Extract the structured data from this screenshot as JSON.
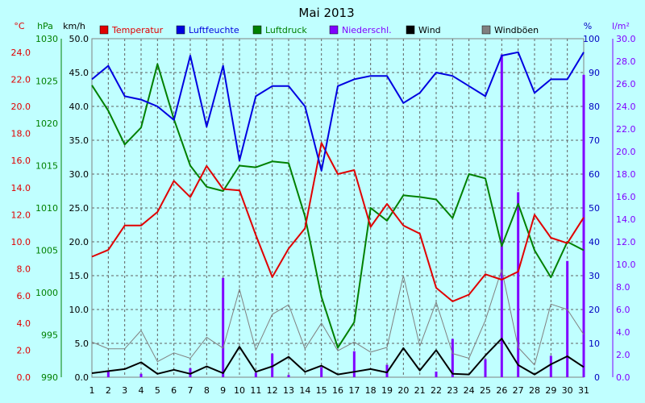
{
  "chart_data": {
    "type": "line",
    "title": "Mai 2013",
    "x": [
      1,
      2,
      3,
      4,
      5,
      6,
      7,
      8,
      9,
      10,
      11,
      12,
      13,
      14,
      15,
      16,
      17,
      18,
      19,
      20,
      21,
      22,
      23,
      24,
      25,
      26,
      27,
      28,
      29,
      30,
      31
    ],
    "axes": {
      "temperature": {
        "unit": "°C",
        "range": [
          0,
          25
        ],
        "ticks": [
          "0.0",
          "2.0",
          "4.0",
          "6.0",
          "8.0",
          "10.0",
          "12.0",
          "14.0",
          "16.0",
          "18.0",
          "20.0",
          "22.0",
          "24.0"
        ],
        "color": "#e00000"
      },
      "pressure": {
        "unit": "hPa",
        "range": [
          990,
          1030
        ],
        "ticks": [
          "990",
          "995",
          "1000",
          "1005",
          "1010",
          "1015",
          "1020",
          "1025",
          "1030"
        ],
        "color": "#008000"
      },
      "wind": {
        "unit": "km/h",
        "range": [
          0,
          50
        ],
        "ticks": [
          "0.0",
          "5.0",
          "10.0",
          "15.0",
          "20.0",
          "25.0",
          "30.0",
          "35.0",
          "40.0",
          "45.0",
          "50.0"
        ],
        "color": "#000000"
      },
      "humidity": {
        "unit": "%",
        "range": [
          0,
          100
        ],
        "ticks": [
          "0",
          "10",
          "20",
          "30",
          "40",
          "50",
          "60",
          "70",
          "80",
          "90",
          "100"
        ],
        "color": "#0000c0"
      },
      "precipitation": {
        "unit": "l/m²",
        "range": [
          0,
          30
        ],
        "ticks": [
          "0.0",
          "2.0",
          "4.0",
          "6.0",
          "8.0",
          "10.0",
          "12.0",
          "14.0",
          "16.0",
          "18.0",
          "20.0",
          "22.0",
          "24.0",
          "26.0",
          "28.0",
          "30.0"
        ],
        "color": "#8000ff"
      }
    },
    "series": [
      {
        "name": "Temperatur",
        "color": "#e00000",
        "axis": "temperature",
        "values": [
          8.9,
          9.4,
          11.2,
          11.2,
          12.2,
          14.5,
          13.3,
          15.6,
          13.9,
          13.8,
          10.5,
          7.4,
          9.5,
          11.0,
          17.3,
          15.0,
          15.3,
          11.1,
          12.8,
          11.2,
          10.6,
          6.6,
          5.6,
          6.1,
          7.6,
          7.2,
          7.8,
          12.0,
          10.3,
          9.9,
          11.8
        ]
      },
      {
        "name": "Luftfeuchte",
        "color": "#0000e0",
        "axis": "humidity",
        "values": [
          88,
          92,
          83,
          82,
          80,
          76,
          95,
          74,
          92,
          64,
          83,
          86,
          86,
          80,
          61,
          86,
          88,
          89,
          89,
          81,
          84,
          90,
          89,
          86,
          83,
          95,
          96,
          84,
          88,
          88,
          96
        ]
      },
      {
        "name": "Luftdruck",
        "color": "#008000",
        "axis": "pressure",
        "values": [
          1024.5,
          1021.5,
          1017.5,
          1019.5,
          1027,
          1020.5,
          1015,
          1012.5,
          1012,
          1015,
          1014.8,
          1015.5,
          1015.3,
          1009,
          999.5,
          993.5,
          996.5,
          1010,
          1008.5,
          1011.5,
          1011.3,
          1011,
          1008.8,
          1014,
          1013.5,
          1005.5,
          1010.5,
          1005,
          1001.8,
          1006,
          1005
        ]
      },
      {
        "name": "Niederschl.",
        "color": "#8000ff",
        "axis": "precipitation",
        "values": [
          0,
          0.5,
          0,
          0.3,
          0,
          0,
          0.8,
          0,
          8.8,
          0,
          0.4,
          2.1,
          0.2,
          0,
          0.9,
          0,
          2.3,
          0,
          1.1,
          0,
          0,
          0.5,
          3.4,
          0,
          1.6,
          28.6,
          16.4,
          0,
          1.9,
          10.3,
          26.8
        ]
      },
      {
        "name": "Wind",
        "color": "#000000",
        "axis": "wind",
        "values": [
          0.6,
          0.9,
          1.2,
          2.2,
          0.5,
          1.1,
          0.5,
          1.6,
          0.6,
          4.5,
          0.8,
          1.6,
          3.0,
          0.8,
          1.7,
          0.4,
          0.8,
          1.2,
          0.7,
          4.3,
          1.0,
          4.0,
          0.5,
          0.4,
          3.2,
          5.7,
          1.8,
          0.4,
          1.9,
          3.1,
          1.5
        ]
      },
      {
        "name": "Windböen",
        "color": "#808080",
        "axis": "wind",
        "values": [
          5.2,
          4.2,
          4.2,
          6.9,
          2.3,
          3.6,
          2.8,
          5.9,
          4.3,
          13.0,
          4.0,
          9.3,
          10.7,
          4.2,
          8.0,
          3.9,
          5.2,
          3.7,
          4.4,
          15.0,
          4.6,
          11.1,
          3.5,
          2.8,
          8.4,
          15.9,
          4.4,
          1.8,
          10.8,
          10.0,
          6.3
        ]
      }
    ],
    "grid": true,
    "legend": "top"
  }
}
